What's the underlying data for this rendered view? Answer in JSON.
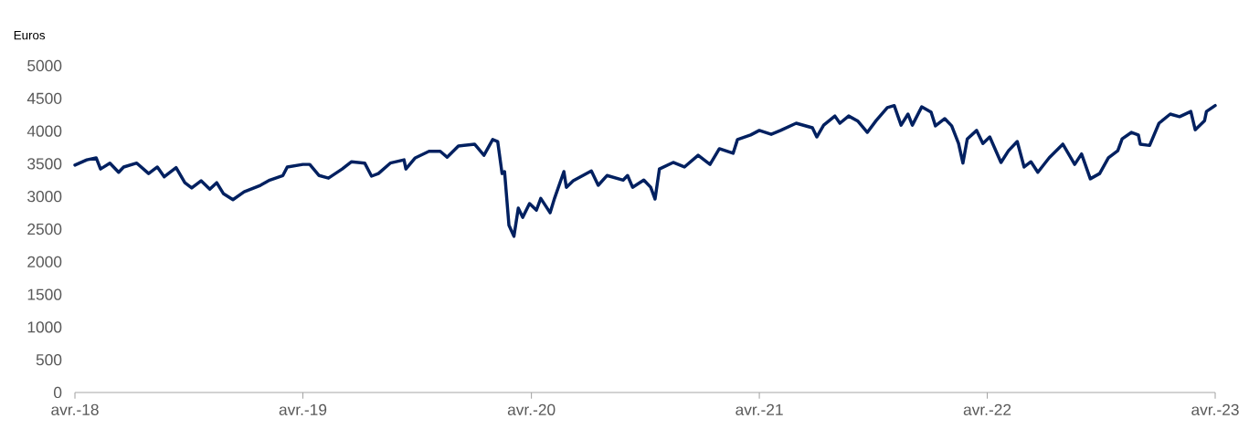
{
  "chart_data": {
    "type": "line",
    "ylabel": "Euros",
    "x": [
      "2018-04-01",
      "2018-04-20",
      "2018-05-05",
      "2018-05-12",
      "2018-05-27",
      "2018-06-10",
      "2018-06-18",
      "2018-07-09",
      "2018-07-28",
      "2018-08-11",
      "2018-08-22",
      "2018-09-10",
      "2018-09-24",
      "2018-10-05",
      "2018-10-20",
      "2018-11-03",
      "2018-11-14",
      "2018-11-25",
      "2018-12-10",
      "2018-12-28",
      "2019-01-23",
      "2019-02-07",
      "2019-02-28",
      "2019-03-07",
      "2019-04-01",
      "2019-04-12",
      "2019-04-27",
      "2019-05-12",
      "2019-06-03",
      "2019-06-18",
      "2019-07-09",
      "2019-07-20",
      "2019-07-31",
      "2019-08-19",
      "2019-09-10",
      "2019-09-13",
      "2019-09-28",
      "2019-10-20",
      "2019-11-07",
      "2019-11-18",
      "2019-12-06",
      "2020-01-01",
      "2020-01-16",
      "2020-01-30",
      "2020-02-07",
      "2020-02-14",
      "2020-02-18",
      "2020-02-25",
      "2020-03-04",
      "2020-03-11",
      "2020-03-18",
      "2020-03-29",
      "2020-04-09",
      "2020-04-16",
      "2020-05-01",
      "2020-05-08",
      "2020-05-23",
      "2020-05-27",
      "2020-06-07",
      "2020-07-06",
      "2020-07-17",
      "2020-07-31",
      "2020-08-26",
      "2020-09-02",
      "2020-09-10",
      "2020-09-28",
      "2020-10-09",
      "2020-10-16",
      "2020-10-23",
      "2020-11-14",
      "2020-12-02",
      "2020-12-24",
      "2021-01-12",
      "2021-01-27",
      "2021-02-18",
      "2021-02-25",
      "2021-03-18",
      "2021-04-01",
      "2021-04-20",
      "2021-05-05",
      "2021-05-30",
      "2021-06-25",
      "2021-07-02",
      "2021-07-13",
      "2021-07-31",
      "2021-08-08",
      "2021-08-22",
      "2021-09-06",
      "2021-09-21",
      "2021-10-05",
      "2021-10-23",
      "2021-11-03",
      "2021-11-14",
      "2021-11-25",
      "2021-12-02",
      "2021-12-17",
      "2022-01-01",
      "2022-01-08",
      "2022-01-23",
      "2022-02-03",
      "2022-02-14",
      "2022-02-21",
      "2022-02-28",
      "2022-03-15",
      "2022-03-25",
      "2022-04-05",
      "2022-04-23",
      "2022-05-05",
      "2022-05-19",
      "2022-05-30",
      "2022-06-10",
      "2022-06-21",
      "2022-07-09",
      "2022-07-31",
      "2022-08-19",
      "2022-08-30",
      "2022-09-13",
      "2022-09-28",
      "2022-10-12",
      "2022-10-27",
      "2022-11-03",
      "2022-11-18",
      "2022-11-29",
      "2022-12-02",
      "2022-12-17",
      "2023-01-01",
      "2023-01-19",
      "2023-02-03",
      "2023-02-21",
      "2023-02-28",
      "2023-03-15",
      "2023-03-18",
      "2023-04-01"
    ],
    "series": [
      {
        "color": "#002060",
        "values": [
          3480,
          3560,
          3590,
          3420,
          3510,
          3370,
          3450,
          3510,
          3350,
          3450,
          3300,
          3440,
          3210,
          3130,
          3240,
          3110,
          3210,
          3040,
          2950,
          3070,
          3170,
          3250,
          3320,
          3450,
          3490,
          3490,
          3320,
          3280,
          3420,
          3530,
          3510,
          3310,
          3350,
          3510,
          3560,
          3420,
          3590,
          3690,
          3690,
          3600,
          3770,
          3800,
          3630,
          3870,
          3840,
          3350,
          3380,
          2560,
          2390,
          2820,
          2680,
          2890,
          2790,
          2970,
          2750,
          2970,
          3380,
          3140,
          3240,
          3390,
          3170,
          3320,
          3250,
          3320,
          3140,
          3250,
          3140,
          2960,
          3420,
          3520,
          3450,
          3630,
          3490,
          3730,
          3660,
          3870,
          3940,
          4010,
          3950,
          4010,
          4120,
          4050,
          3910,
          4090,
          4230,
          4120,
          4230,
          4150,
          3980,
          4160,
          4360,
          4390,
          4090,
          4260,
          4090,
          4370,
          4290,
          4080,
          4190,
          4080,
          3810,
          3510,
          3880,
          4010,
          3810,
          3910,
          3520,
          3700,
          3840,
          3450,
          3530,
          3370,
          3590,
          3800,
          3490,
          3650,
          3270,
          3350,
          3590,
          3700,
          3880,
          3980,
          3940,
          3800,
          3780,
          4120,
          4260,
          4220,
          4300,
          4020,
          4160,
          4300,
          4390
        ]
      }
    ],
    "xlim": [
      "2018-04-01",
      "2023-04-01"
    ],
    "xticks": [
      {
        "value": "2018-04-01",
        "label": "avr.-18"
      },
      {
        "value": "2019-04-01",
        "label": "avr.-19"
      },
      {
        "value": "2020-04-01",
        "label": "avr.-20"
      },
      {
        "value": "2021-04-01",
        "label": "avr.-21"
      },
      {
        "value": "2022-04-01",
        "label": "avr.-22"
      },
      {
        "value": "2023-04-01",
        "label": "avr.-23"
      }
    ],
    "ylim": [
      0,
      5000
    ],
    "yticks": [
      0,
      500,
      1000,
      1500,
      2000,
      2500,
      3000,
      3500,
      4000,
      4500,
      5000
    ],
    "marker": "none",
    "line_style": "solid"
  }
}
